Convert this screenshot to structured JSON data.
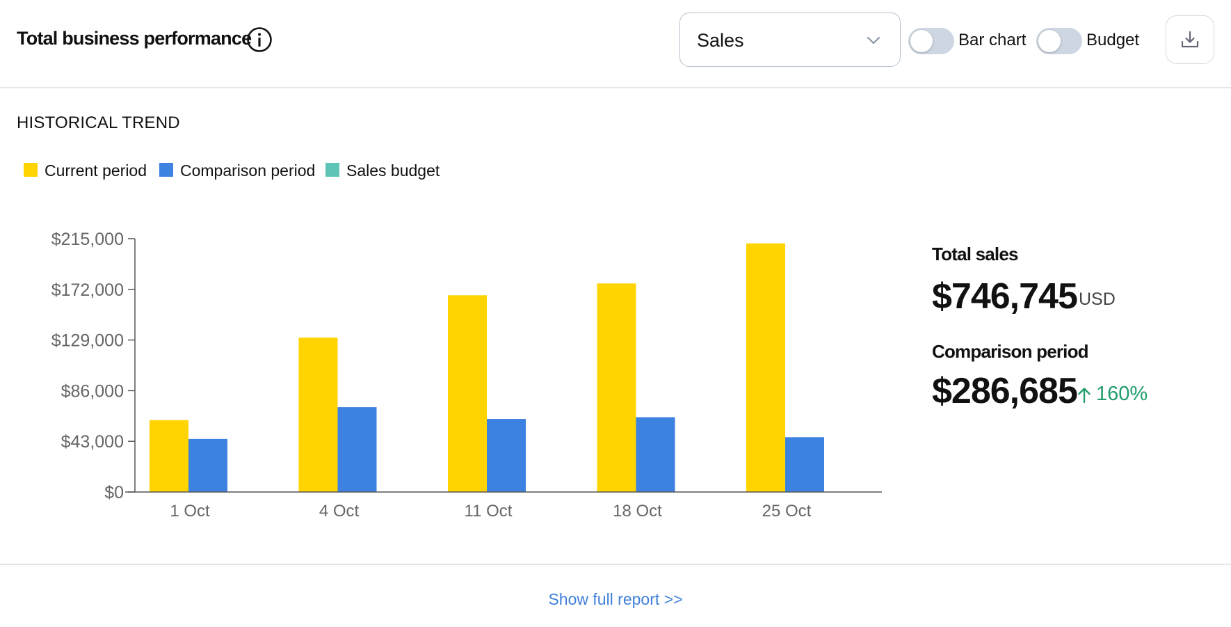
{
  "header": {
    "title": "Total business performance",
    "info_icon": "info-icon",
    "metric_select": {
      "value": "Sales",
      "icon": "chevron-down-icon"
    },
    "toggles": [
      {
        "label": "Bar chart",
        "on": false
      },
      {
        "label": "Budget",
        "on": false
      }
    ],
    "download_icon": "download-icon"
  },
  "section_title": "HISTORICAL TREND",
  "legend": [
    {
      "label": "Current period",
      "color": "#FFD400"
    },
    {
      "label": "Comparison period",
      "color": "#3D82E0"
    },
    {
      "label": "Sales budget",
      "color": "#5EC5B6"
    }
  ],
  "chart_data": {
    "type": "bar",
    "categories": [
      "1 Oct",
      "4 Oct",
      "11 Oct",
      "18 Oct",
      "25 Oct"
    ],
    "series": [
      {
        "name": "Current period",
        "color": "#FFD400",
        "values": [
          61000,
          131000,
          167000,
          177000,
          211000
        ]
      },
      {
        "name": "Comparison period",
        "color": "#3D82E0",
        "values": [
          45000,
          72000,
          62000,
          63500,
          46500
        ]
      }
    ],
    "y_ticks": [
      0,
      43000,
      86000,
      129000,
      172000,
      215000
    ],
    "y_tick_labels": [
      "$0",
      "$43,000",
      "$86,000",
      "$129,000",
      "$172,000",
      "$215,000"
    ],
    "ylim": [
      0,
      215000
    ],
    "grid": false,
    "legend_position": "top-left"
  },
  "stats": {
    "total_label": "Total sales",
    "total_value": "$746,745",
    "total_unit": "USD",
    "comparison_label": "Comparison period",
    "comparison_value": "$286,685",
    "change_icon": "arrow-up-icon",
    "change_text": "160%"
  },
  "footer": {
    "link": "Show full report >>"
  }
}
